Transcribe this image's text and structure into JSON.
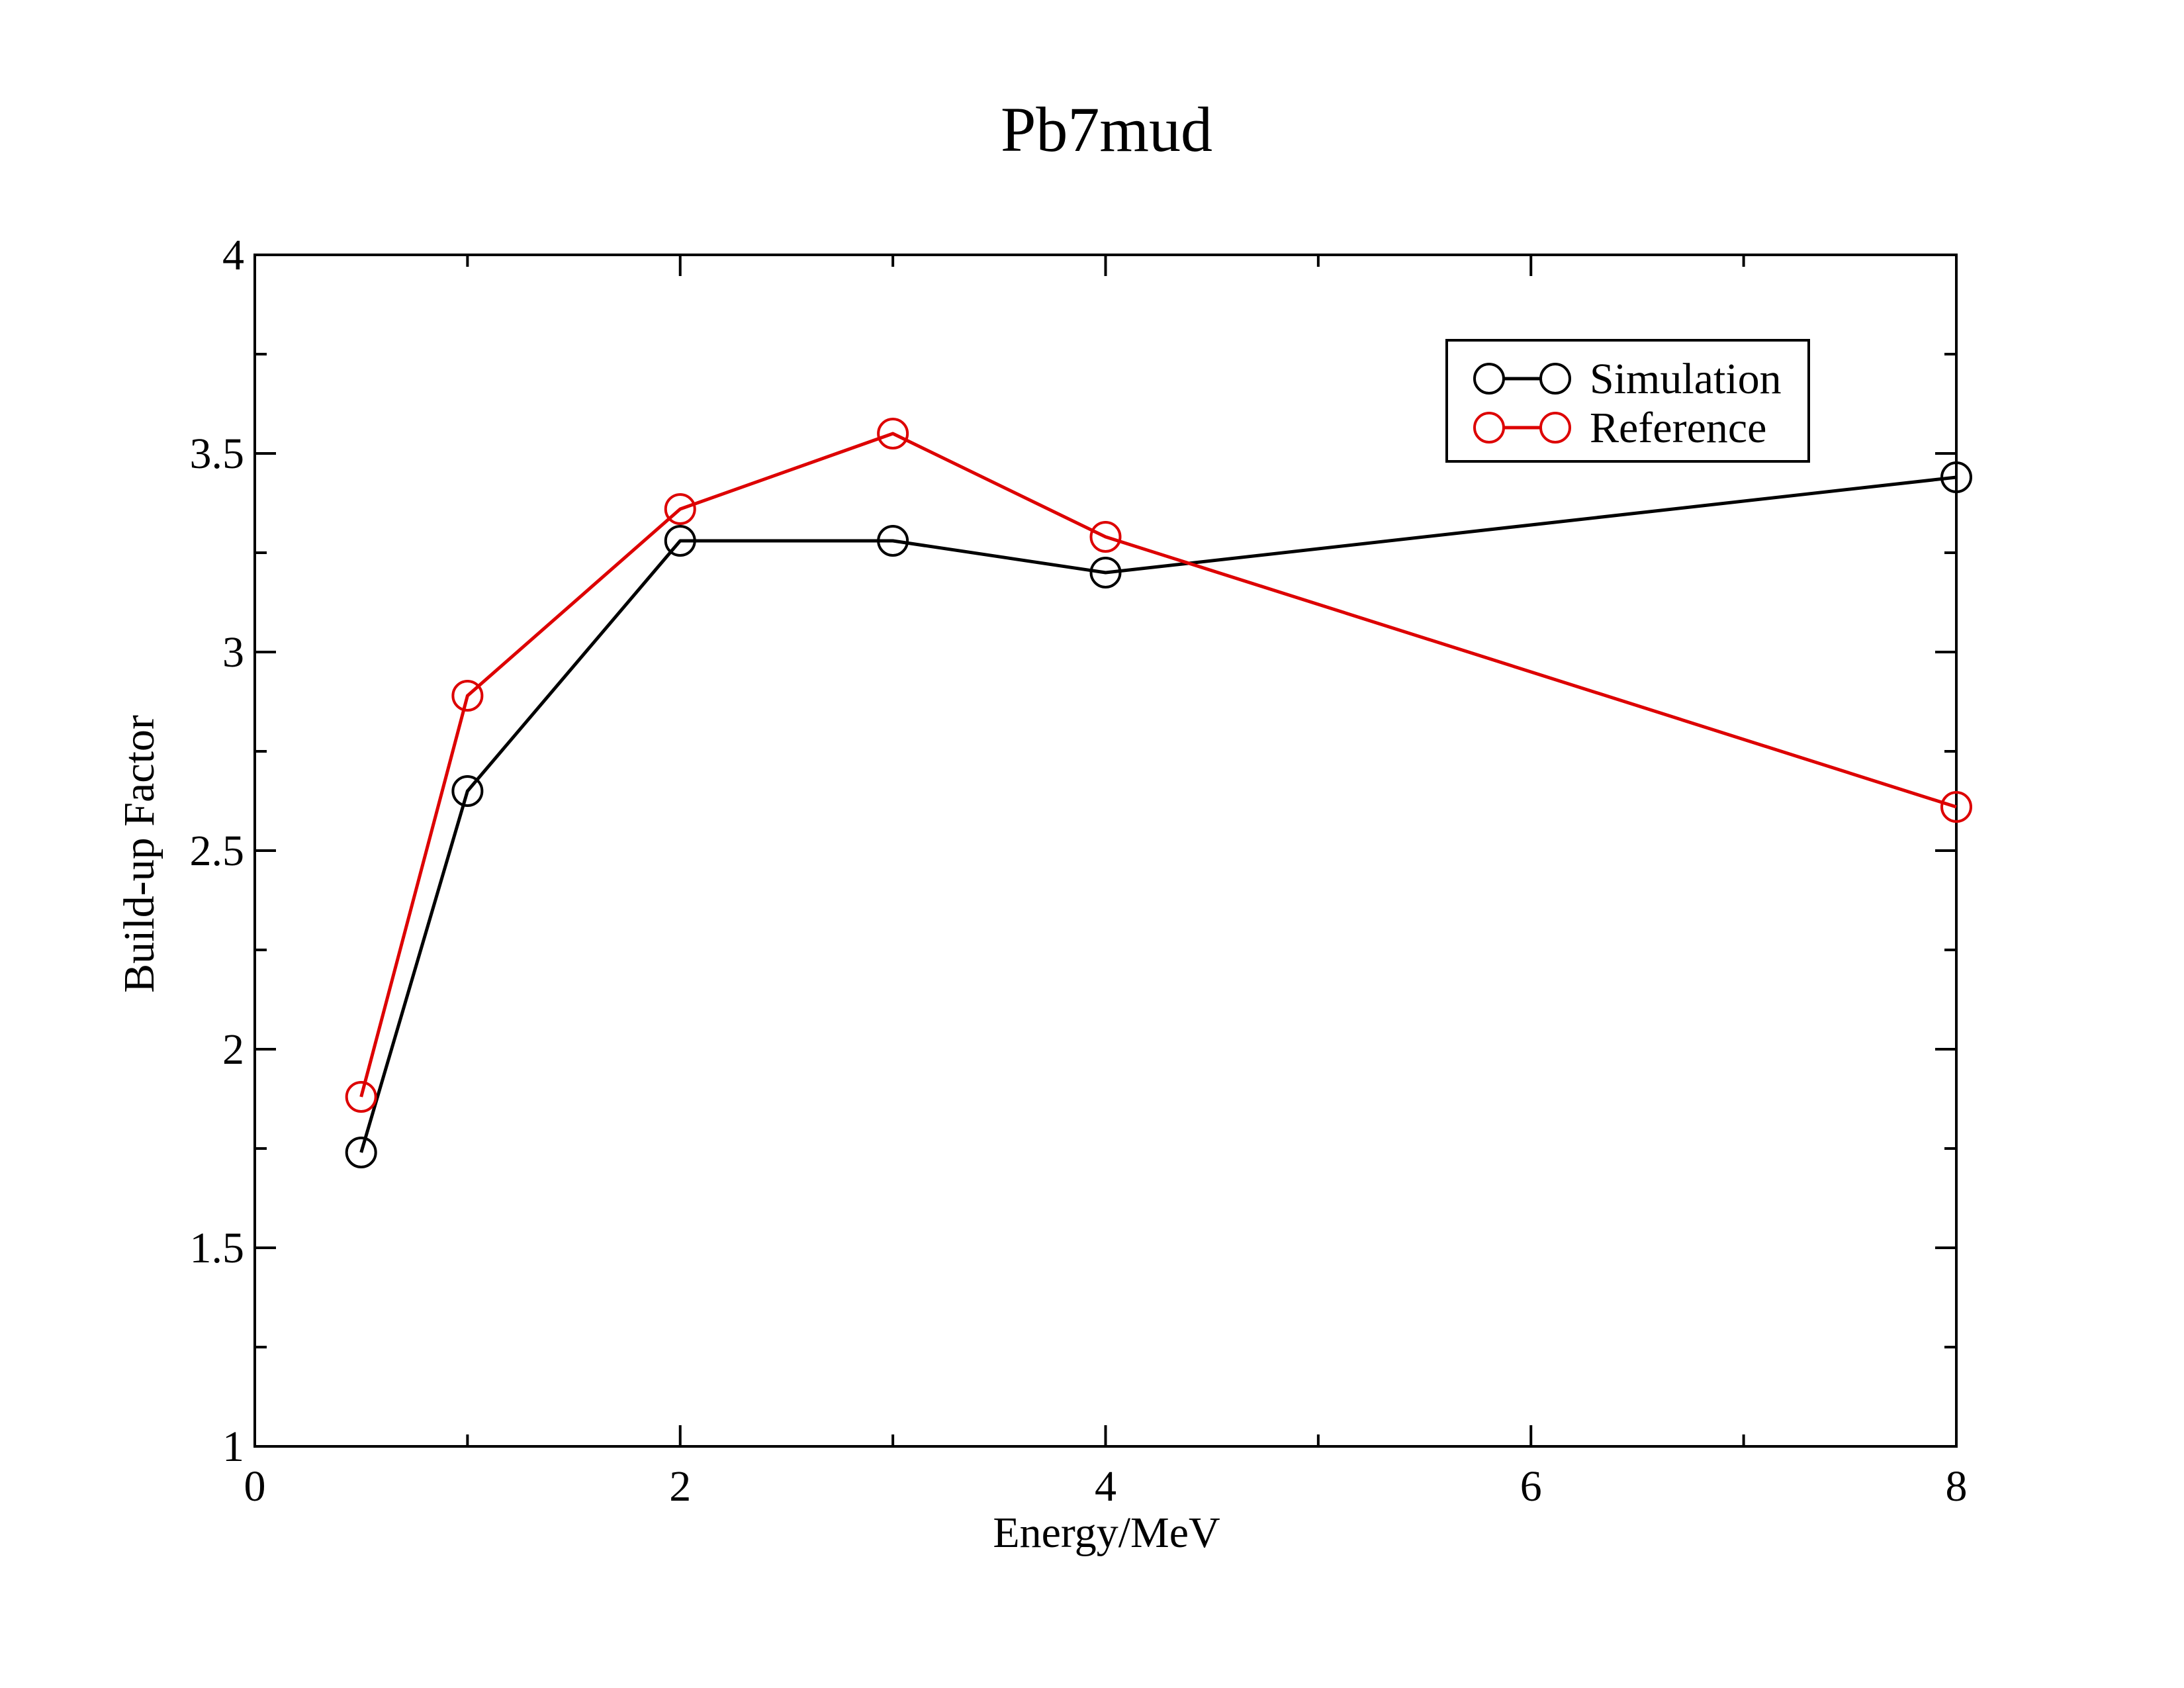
{
  "chart_data": {
    "type": "line",
    "title": "Pb7mud",
    "xlabel": "Energy/MeV",
    "ylabel": "Build-up Factor",
    "xlim": [
      0,
      8
    ],
    "ylim": [
      1,
      4
    ],
    "xticks": [
      0,
      2,
      4,
      6,
      8
    ],
    "xtick_labels": [
      "0",
      "2",
      "4",
      "6",
      "8"
    ],
    "yticks": [
      1,
      1.5,
      2,
      2.5,
      3,
      3.5,
      4
    ],
    "ytick_labels": [
      "1",
      "1.5",
      "2",
      "2.5",
      "3",
      "3.5",
      "4"
    ],
    "x_minor_step": 1,
    "y_minor_step": 0.25,
    "grid": false,
    "legend_position": "top-right",
    "marker": "open-circle",
    "series": [
      {
        "name": "Simulation",
        "color": "#000000",
        "x": [
          0.5,
          1,
          2,
          3,
          4,
          8
        ],
        "y": [
          1.74,
          2.65,
          3.28,
          3.28,
          3.2,
          3.44
        ]
      },
      {
        "name": "Reference",
        "color": "#dd0000",
        "x": [
          0.5,
          1,
          2,
          3,
          4,
          8
        ],
        "y": [
          1.88,
          2.89,
          3.36,
          3.55,
          3.29,
          2.61
        ]
      }
    ]
  }
}
